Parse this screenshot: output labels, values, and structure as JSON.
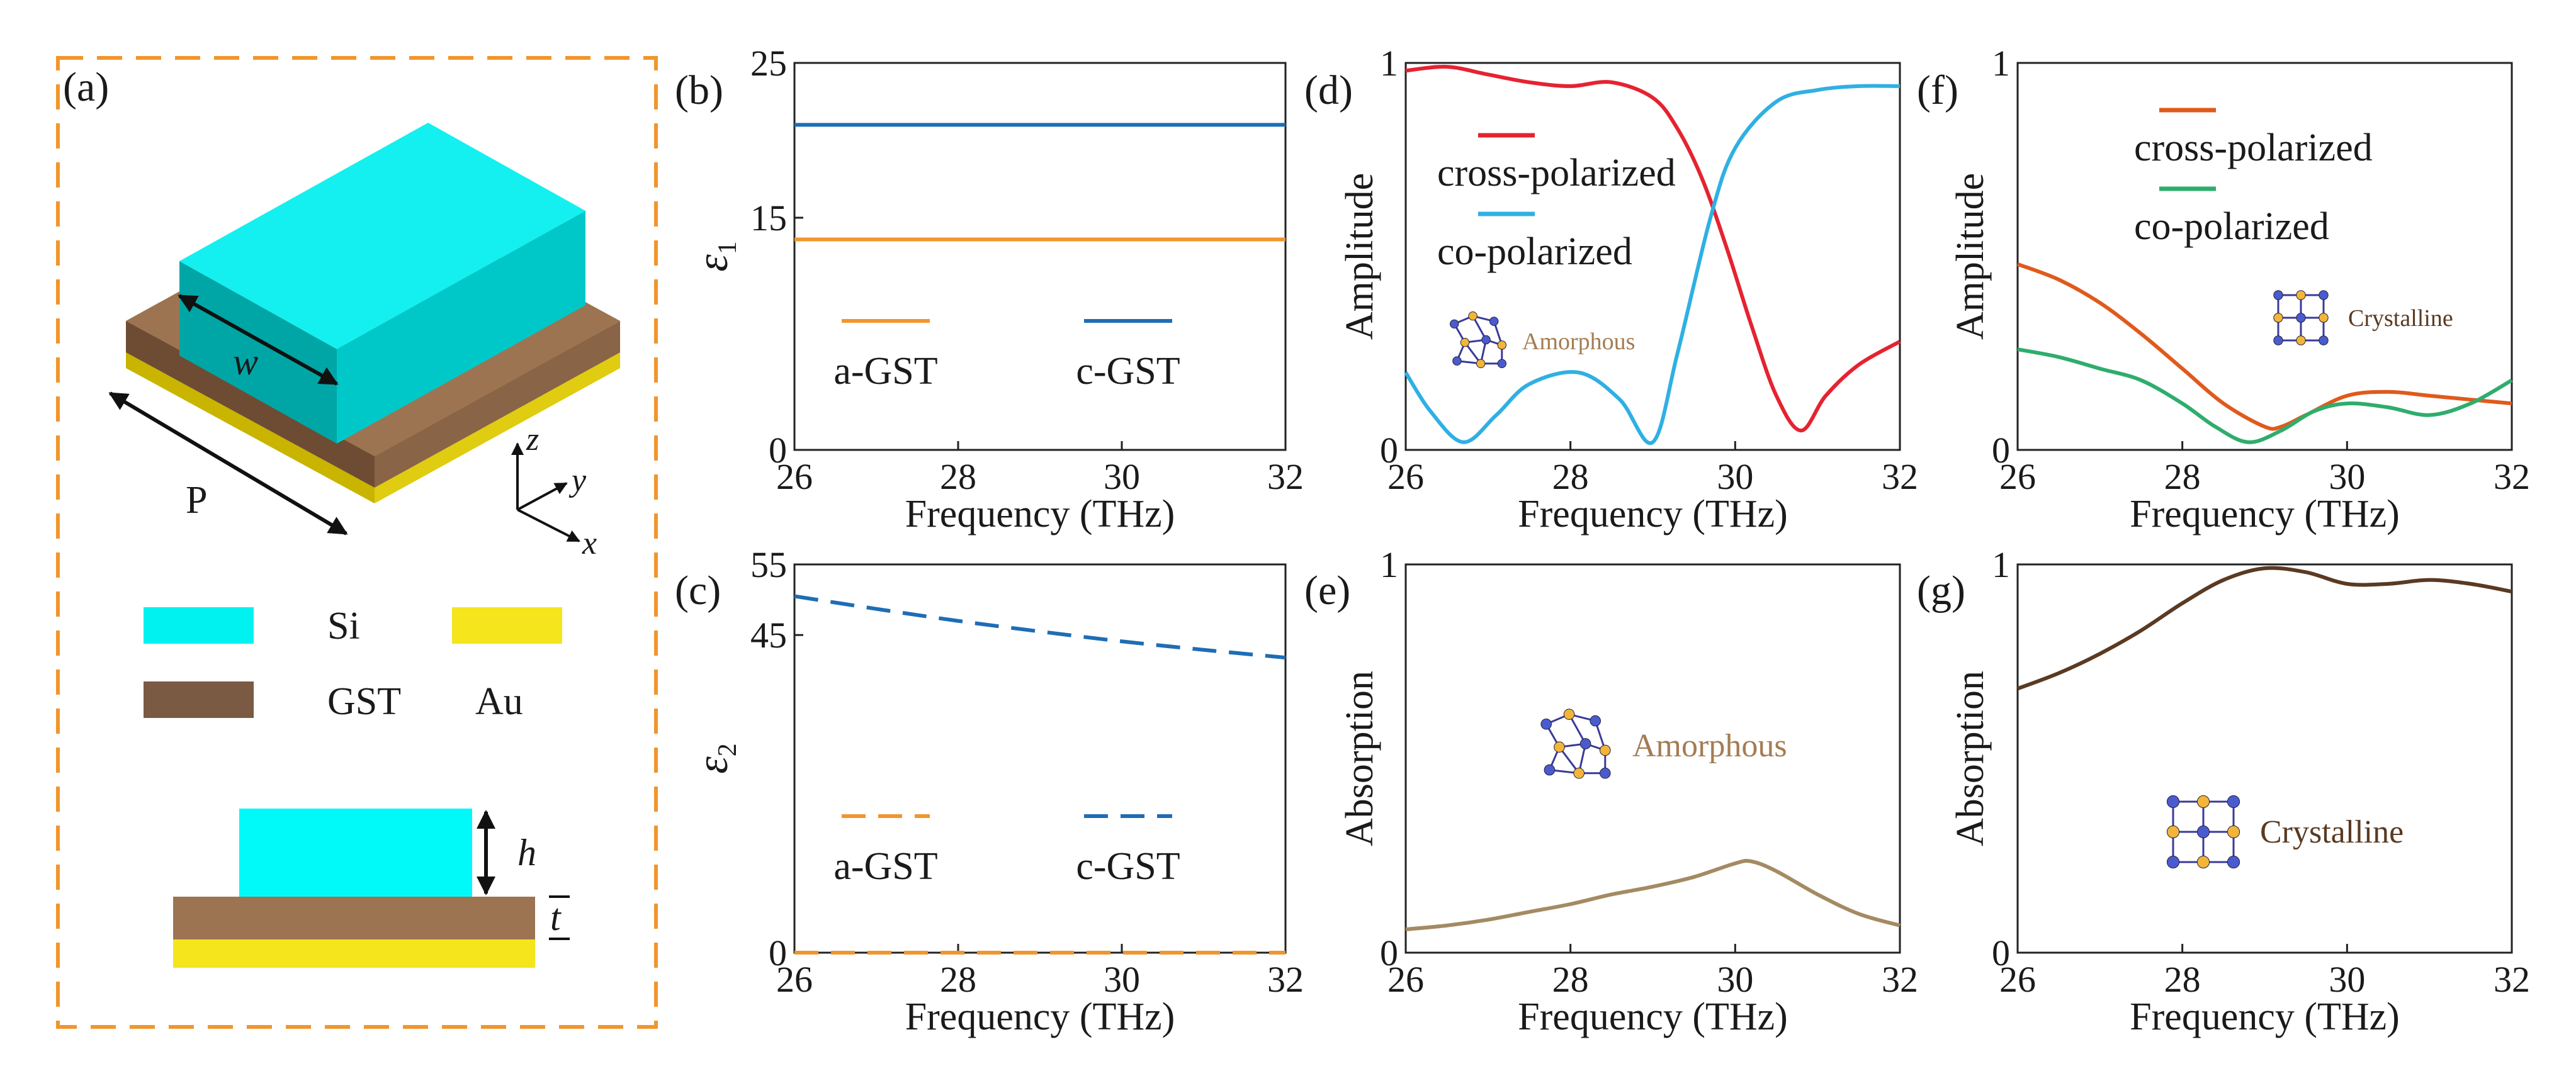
{
  "panel_a": {
    "label": "(a)",
    "dimension_labels": {
      "w": "w",
      "P": "P",
      "h": "h",
      "t": "t"
    },
    "axes": {
      "x": "x",
      "y": "y",
      "z": "z"
    },
    "legend": [
      {
        "name": "Si",
        "color": "#00F2F0"
      },
      {
        "name": "GST",
        "color": "#7A5A43"
      },
      {
        "name": "Au",
        "color": "#F5E51C"
      }
    ],
    "frame_color": "#F0962D"
  },
  "chart_data": [
    {
      "id": "b",
      "label": "(b)",
      "type": "line",
      "xlabel": "Frequency (THz)",
      "ylabel": "ε1",
      "xlim": [
        26,
        32
      ],
      "ylim": [
        0,
        25
      ],
      "xticks": [
        26,
        28,
        30,
        32
      ],
      "yticks": [
        0,
        15,
        25
      ],
      "series": [
        {
          "name": "a-GST",
          "color": "#F0962D",
          "dash": false,
          "x": [
            26,
            32
          ],
          "y": [
            13.6,
            13.6
          ]
        },
        {
          "name": "c-GST",
          "color": "#1E6DB5",
          "dash": false,
          "x": [
            26,
            32
          ],
          "y": [
            21.0,
            21.0
          ]
        }
      ]
    },
    {
      "id": "c",
      "label": "(c)",
      "type": "line",
      "xlabel": "Frequency (THz)",
      "ylabel": "ε2",
      "xlim": [
        26,
        32
      ],
      "ylim": [
        0,
        55
      ],
      "xticks": [
        26,
        28,
        30,
        32
      ],
      "yticks": [
        0,
        45,
        55
      ],
      "series": [
        {
          "name": "a-GST",
          "color": "#F0962D",
          "dash": true,
          "x": [
            26,
            32
          ],
          "y": [
            0,
            0
          ]
        },
        {
          "name": "c-GST",
          "color": "#1E6DB5",
          "dash": true,
          "x": [
            26,
            27,
            28,
            29,
            30,
            31,
            32
          ],
          "y": [
            50.5,
            48.7,
            47.0,
            45.5,
            44.1,
            42.9,
            41.8
          ]
        }
      ]
    },
    {
      "id": "d",
      "label": "(d)",
      "type": "line",
      "xlabel": "Frequency (THz)",
      "ylabel": "Amplitude",
      "xlim": [
        26,
        32
      ],
      "ylim": [
        0,
        1
      ],
      "xticks": [
        26,
        28,
        30,
        32
      ],
      "yticks": [
        0,
        1
      ],
      "annotation": "Amorphous",
      "series": [
        {
          "name": "cross-polarized",
          "color": "#E52330",
          "x": [
            26,
            26.5,
            27,
            27.5,
            28,
            28.5,
            29,
            29.3,
            29.6,
            29.9,
            30.2,
            30.5,
            30.8,
            31.1,
            31.5,
            32
          ],
          "y": [
            0.98,
            0.99,
            0.97,
            0.95,
            0.94,
            0.95,
            0.91,
            0.83,
            0.7,
            0.52,
            0.32,
            0.14,
            0.05,
            0.14,
            0.22,
            0.28
          ]
        },
        {
          "name": "co-polarized",
          "color": "#2FB0E3",
          "x": [
            26,
            26.3,
            26.7,
            27.1,
            27.5,
            28.1,
            28.6,
            29.0,
            29.3,
            29.7,
            30.0,
            30.5,
            31,
            31.5,
            32
          ],
          "y": [
            0.2,
            0.1,
            0.02,
            0.09,
            0.17,
            0.2,
            0.13,
            0.02,
            0.25,
            0.6,
            0.78,
            0.9,
            0.93,
            0.94,
            0.94
          ]
        }
      ]
    },
    {
      "id": "e",
      "label": "(e)",
      "type": "line",
      "xlabel": "Frequency (THz)",
      "ylabel": "Absorption",
      "xlim": [
        26,
        32
      ],
      "ylim": [
        0,
        1
      ],
      "xticks": [
        26,
        28,
        30,
        32
      ],
      "yticks": [
        0,
        1
      ],
      "annotation": "Amorphous",
      "series": [
        {
          "name": "",
          "color": "#A48A63",
          "x": [
            26,
            26.5,
            27,
            27.5,
            28,
            28.5,
            29,
            29.5,
            30,
            30.2,
            30.5,
            31,
            31.5,
            32
          ],
          "y": [
            0.06,
            0.07,
            0.085,
            0.105,
            0.125,
            0.15,
            0.17,
            0.195,
            0.23,
            0.235,
            0.21,
            0.15,
            0.1,
            0.07
          ]
        }
      ]
    },
    {
      "id": "f",
      "label": "(f)",
      "type": "line",
      "xlabel": "Frequency (THz)",
      "ylabel": "Amplitude",
      "xlim": [
        26,
        32
      ],
      "ylim": [
        0,
        1
      ],
      "xticks": [
        26,
        28,
        30,
        32
      ],
      "yticks": [
        0,
        1
      ],
      "annotation": "Crystalline",
      "series": [
        {
          "name": "cross-polarized",
          "color": "#E05A1C",
          "x": [
            26,
            26.5,
            27,
            27.5,
            28,
            28.5,
            29,
            29.2,
            29.5,
            30,
            30.5,
            31,
            31.5,
            32
          ],
          "y": [
            0.48,
            0.44,
            0.38,
            0.3,
            0.21,
            0.12,
            0.06,
            0.06,
            0.09,
            0.14,
            0.15,
            0.14,
            0.13,
            0.12
          ]
        },
        {
          "name": "co-polarized",
          "color": "#2EAD6C",
          "x": [
            26,
            26.5,
            27,
            27.5,
            28,
            28.4,
            28.8,
            29.2,
            29.6,
            30,
            30.5,
            31,
            31.5,
            32
          ],
          "y": [
            0.26,
            0.24,
            0.21,
            0.18,
            0.12,
            0.06,
            0.02,
            0.05,
            0.1,
            0.12,
            0.11,
            0.09,
            0.12,
            0.18
          ]
        }
      ]
    },
    {
      "id": "g",
      "label": "(g)",
      "type": "line",
      "xlabel": "Frequency (THz)",
      "ylabel": "Absorption",
      "xlim": [
        26,
        32
      ],
      "ylim": [
        0,
        1
      ],
      "xticks": [
        26,
        28,
        30,
        32
      ],
      "yticks": [
        0,
        1
      ],
      "annotation": "Crystalline",
      "series": [
        {
          "name": "",
          "color": "#5A3A22",
          "x": [
            26,
            26.5,
            27,
            27.5,
            28,
            28.5,
            29,
            29.5,
            30,
            30.5,
            31,
            31.5,
            32
          ],
          "y": [
            0.68,
            0.72,
            0.77,
            0.83,
            0.9,
            0.96,
            0.99,
            0.98,
            0.95,
            0.95,
            0.96,
            0.95,
            0.93
          ]
        }
      ]
    }
  ]
}
